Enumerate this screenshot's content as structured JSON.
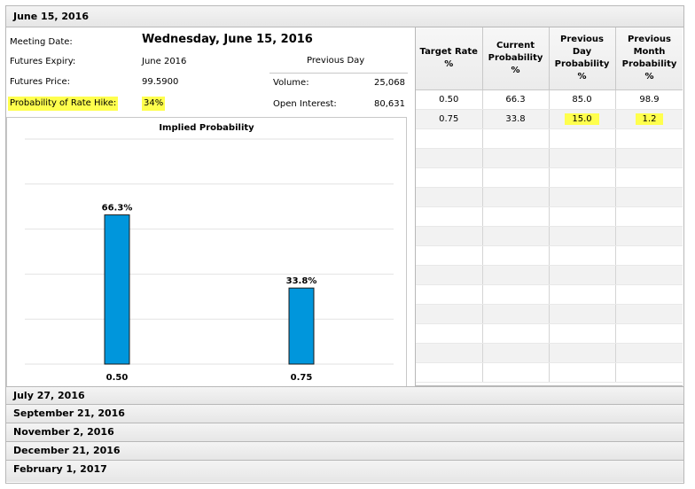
{
  "sections": {
    "active": "June 15, 2016",
    "collapsed": [
      "July 27, 2016",
      "September 21, 2016",
      "November 2, 2016",
      "December 21, 2016",
      "February 1, 2017"
    ]
  },
  "meeting": {
    "meeting_date_label": "Meeting Date:",
    "meeting_date_value": "Wednesday, June 15, 2016",
    "futures_expiry_label": "Futures Expiry:",
    "futures_expiry_value": "June 2016",
    "futures_price_label": "Futures Price:",
    "futures_price_value": "99.5900",
    "prob_hike_label": "Probability of Rate Hike:",
    "prob_hike_value": "34%",
    "highlight_color": "#ffff4d"
  },
  "previous_day": {
    "heading": "Previous Day",
    "volume_label": "Volume:",
    "volume_value": "25,068",
    "open_interest_label": "Open Interest:",
    "open_interest_value": "80,631"
  },
  "table": {
    "headers": [
      "Target Rate %",
      "Current Probability %",
      "Previous Day Probability %",
      "Previous Month Probability %"
    ],
    "rows": [
      [
        "0.50",
        "66.3",
        "85.0",
        "98.9"
      ],
      [
        "0.75",
        "33.8",
        "15.0",
        "1.2"
      ]
    ]
  },
  "chart_data": {
    "type": "bar",
    "title": "Implied Probability",
    "categories": [
      "0.50",
      "0.75"
    ],
    "values": [
      66.3,
      33.8
    ],
    "data_labels": [
      "66.3%",
      "33.8%"
    ],
    "ylim": [
      0,
      100
    ],
    "grid": true,
    "bar_color": "#0096dc"
  }
}
